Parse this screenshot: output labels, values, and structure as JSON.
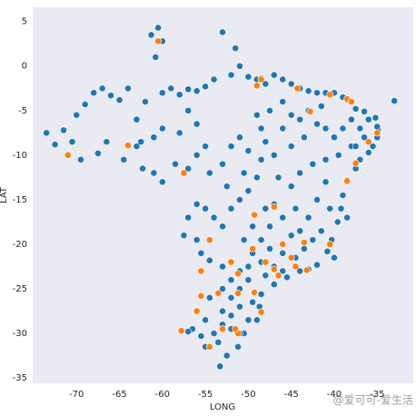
{
  "chart_data": {
    "type": "scatter",
    "xlabel": "LONG",
    "ylabel": "LAT",
    "xlim": [
      -75.1,
      -30.8
    ],
    "ylim": [
      -35.6,
      6.6
    ],
    "xticks": [
      -70,
      -65,
      -60,
      -55,
      -50,
      -45,
      -40,
      -35
    ],
    "yticks": [
      5,
      0,
      -5,
      -10,
      -15,
      -20,
      -25,
      -30,
      -35
    ],
    "grid": false,
    "watermark": "@爱可可-爱生活",
    "series": [
      {
        "color": "#1f77b4",
        "x": [
          -73.5,
          -72.5,
          -71.5,
          -70.5,
          -70,
          -69,
          -68,
          -67.5,
          -67,
          -66,
          -65,
          -64.5,
          -64,
          -63,
          -62.3,
          -62,
          -61,
          -60.5,
          -61.3,
          -60,
          -60.8,
          -60,
          -59,
          -58,
          -57,
          -56,
          -55,
          -54,
          -53,
          -51.5,
          -51,
          -52,
          -50,
          -49,
          -48.5,
          -48,
          -47,
          -46,
          -45,
          -44,
          -43,
          -42,
          -41,
          -40,
          -39,
          -38.5,
          -37.5,
          -36.5,
          -35.2,
          -34.9,
          -35,
          -35.5,
          -36,
          -37,
          -37.5,
          -38.5,
          -39,
          -39.2,
          -39.6,
          -40.3,
          -40.8,
          -42,
          -44,
          -45.5,
          -47,
          -48.5,
          -48.7,
          -49,
          -50.5,
          -51.2,
          -52.5,
          -53.3,
          -53.5,
          -54,
          -55.5,
          -56.5,
          -57,
          -55,
          -53,
          -54.5,
          -52,
          -53,
          -51,
          -52,
          -50,
          -51,
          -53,
          -54.5,
          -55.5,
          -56,
          -57.5,
          -57,
          -56,
          -55,
          -54,
          -53,
          -52,
          -51,
          -50,
          -49,
          -48.5,
          -48,
          -48.5,
          -49,
          -47.5,
          -46,
          -45,
          -44,
          -43,
          -42,
          -41,
          -40,
          -39,
          -38,
          -37,
          -36.5,
          -38,
          -39.5,
          -41,
          -42.5,
          -44,
          -45,
          -46.5,
          -47,
          -48,
          -47.5,
          -46,
          -44.5,
          -43,
          -42,
          -41,
          -40.5,
          -41.5,
          -42.5,
          -43.5,
          -44.5,
          -46,
          -47.5,
          -48.5,
          -49.5,
          -50.5,
          -49.5,
          -48.5,
          -47,
          -46,
          -48,
          -50,
          -49.5,
          -51,
          -52,
          -50,
          -52,
          -51,
          -53,
          -55,
          -60,
          -61,
          -58.5,
          -57,
          -56,
          -54.5,
          -53,
          -55,
          -52,
          -51,
          -50,
          -52.5,
          -50.5,
          -63,
          -66.5,
          -69.5,
          -58,
          -45,
          -43.5,
          -46,
          -41.5,
          -36,
          -35,
          -37.5,
          -33,
          -38.5,
          -40,
          -43,
          -45,
          -44,
          -47,
          -57,
          -56,
          -60,
          -62.5
        ],
        "values": [
          -7.5,
          -8.8,
          -7.2,
          -8.5,
          -5.5,
          -4.3,
          -3,
          -9.8,
          -2.5,
          -3.3,
          -3.8,
          -10.5,
          -2.5,
          -9,
          -11.5,
          -4,
          -8,
          4.3,
          3.5,
          2.8,
          1,
          -3,
          -2.5,
          -3.2,
          -2.6,
          -2.8,
          -2.3,
          -1.5,
          3.8,
          2,
          0,
          -1,
          -1.2,
          -1.5,
          -1.4,
          -2,
          -1,
          -1.5,
          -2,
          -2.5,
          -2.8,
          -3,
          -3,
          -3,
          -3.5,
          -3.8,
          -4.8,
          -5.1,
          -5.8,
          -7.1,
          -8,
          -9,
          -9.7,
          -10.5,
          -11.5,
          -12.8,
          -14.5,
          -16,
          -17.5,
          -19.5,
          -20.8,
          -22.3,
          -23,
          -23.7,
          -24.5,
          -25.6,
          -27,
          -28.5,
          -30,
          -31.5,
          -32.5,
          -33.7,
          -31,
          -30,
          -30.3,
          -29.5,
          -29.8,
          -28.5,
          -27.5,
          -26,
          -26,
          -25,
          -25,
          -24,
          -24,
          -23,
          -22.5,
          -21.8,
          -21,
          -19.5,
          -19,
          -17,
          -15.5,
          -16,
          -17,
          -18,
          -16,
          -15,
          -14,
          -12.5,
          -10.5,
          -8.5,
          -7,
          -5.5,
          -5,
          -4,
          -5.5,
          -6,
          -5,
          -6.5,
          -7,
          -8,
          -7,
          -6,
          -7,
          -8,
          -9,
          -10,
          -10.5,
          -11,
          -12,
          -13.5,
          -12.5,
          -15.5,
          -16,
          -18,
          -17,
          -16,
          -17,
          -15,
          -13,
          -16,
          -18.5,
          -19.5,
          -20.5,
          -21.5,
          -21,
          -20.5,
          -19.5,
          -18,
          -19.5,
          -21,
          -22,
          -22.5,
          -23,
          -23.5,
          -22.5,
          -26.5,
          -27,
          -28,
          -28.5,
          -29.5,
          -30,
          -29,
          -31.5,
          -13,
          -12,
          -11,
          -11.5,
          -10,
          -12,
          -11,
          -9,
          -9,
          -8,
          -9.5,
          -13.5,
          -12,
          -6,
          -8.5,
          -10.5,
          -7.5,
          -9,
          -8,
          -7,
          -4.5,
          -6,
          -6.8,
          -9,
          -3.9,
          -17,
          -21.5,
          -22.8,
          -19,
          -18.5,
          -10,
          -5,
          -6.5,
          -7,
          -8.5
        ]
      },
      {
        "color": "#ff7f0e",
        "x": [
          -60.5,
          -71,
          -64,
          -57.5,
          -54.5,
          -49.5,
          -47,
          -48,
          -46.5,
          -44.5,
          -43.2,
          -45,
          -46,
          -43.5,
          -40.5,
          -38.5,
          -37.5,
          -36,
          -35,
          -38.5,
          -38,
          -40.5,
          -44.3,
          -48.5,
          -49,
          -42.8,
          -52,
          -53.5,
          -51.2,
          -49.3,
          -51.2,
          -51.5,
          -56,
          -57.8,
          -54.5,
          -55.5,
          -48.5,
          -53,
          -55.5,
          -51.2,
          -47,
          -49.3
        ],
        "values": [
          2.8,
          -10,
          -8.9,
          -12,
          -19.5,
          -20.5,
          -22.8,
          -22,
          -23.5,
          -22.5,
          -22.9,
          -21.5,
          -20,
          -19.8,
          -20,
          -12.9,
          -10.9,
          -8.5,
          -7.5,
          -3.7,
          -4,
          -3.2,
          -2.5,
          -1.5,
          -2.2,
          -5.1,
          -22,
          -25.5,
          -25.5,
          -25.4,
          -30,
          -29.5,
          -27.5,
          -29.7,
          -31.5,
          -25.8,
          -27.6,
          -29.5,
          -23,
          -23.3,
          -15.8,
          -16.7
        ]
      }
    ]
  }
}
